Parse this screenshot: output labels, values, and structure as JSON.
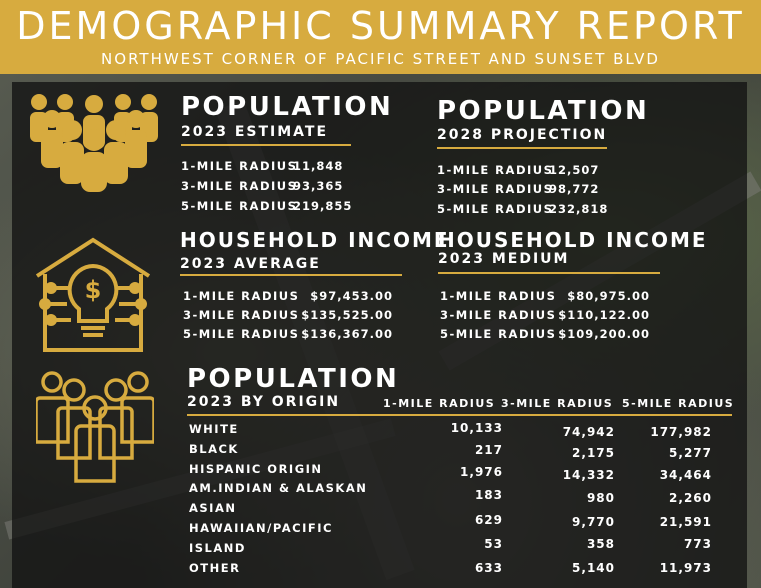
{
  "header": {
    "title": "DEMOGRAPHIC SUMMARY REPORT",
    "subtitle": "NORTHWEST CORNER OF PACIFIC STREET AND SUNSET BLVD"
  },
  "icons": {
    "people": "people-group-icon",
    "income": "house-lightbulb-dollar-icon",
    "origin": "people-outline-icon"
  },
  "colors": {
    "accent": "#d7ab3f",
    "panel": "#121212"
  },
  "pop2023": {
    "title": "POPULATION",
    "subtitle": "2023 ESTIMATE",
    "rows": [
      {
        "label": "1-MILE RADIUS",
        "value": "11,848"
      },
      {
        "label": "3-MILE RADIUS",
        "value": "93,365"
      },
      {
        "label": "5-MILE RADIUS",
        "value": "219,855"
      }
    ]
  },
  "pop2028": {
    "title": "POPULATION",
    "subtitle": "2028 PROJECTION",
    "rows": [
      {
        "label": "1-MILE RADIUS",
        "value": "12,507"
      },
      {
        "label": "3-MILE RADIUS",
        "value": "98,772"
      },
      {
        "label": "5-MILE RADIUS",
        "value": "232,818"
      }
    ]
  },
  "incomeAvg": {
    "title": "HOUSEHOLD INCOME",
    "subtitle": "2023 AVERAGE",
    "rows": [
      {
        "label": "1-MILE RADIUS",
        "value": "$97,453.00"
      },
      {
        "label": "3-MILE RADIUS",
        "value": "$135,525.00"
      },
      {
        "label": "5-MILE RADIUS",
        "value": "$136,367.00"
      }
    ]
  },
  "incomeMed": {
    "title": "HOUSEHOLD INCOME",
    "subtitle": "2023 MEDIUM",
    "rows": [
      {
        "label": "1-MILE RADIUS",
        "value": "$80,975.00"
      },
      {
        "label": "3-MILE RADIUS",
        "value": "$110,122.00"
      },
      {
        "label": "5-MILE RADIUS",
        "value": "$109,200.00"
      }
    ]
  },
  "origin": {
    "title": "POPULATION",
    "subtitle": "2023 BY ORIGIN",
    "columns": [
      "1-MILE RADIUS",
      "3-MILE RADIUS",
      "5-MILE RADIUS"
    ],
    "labels": [
      "WHITE",
      "BLACK",
      "HISPANIC ORIGIN",
      "AM.INDIAN & ALASKAN",
      "ASIAN",
      "HAWAIIAN/PACIFIC",
      "ISLAND",
      "OTHER"
    ],
    "rows": [
      [
        "10,133",
        "74,942",
        "177,982"
      ],
      [
        "217",
        "2,175",
        "5,277"
      ],
      [
        "1,976",
        "14,332",
        "34,464"
      ],
      [
        "183",
        "980",
        "2,260"
      ],
      [
        "629",
        "9,770",
        "21,591"
      ],
      [
        "53",
        "358",
        "773"
      ],
      [
        "633",
        "5,140",
        "11,973"
      ]
    ]
  }
}
